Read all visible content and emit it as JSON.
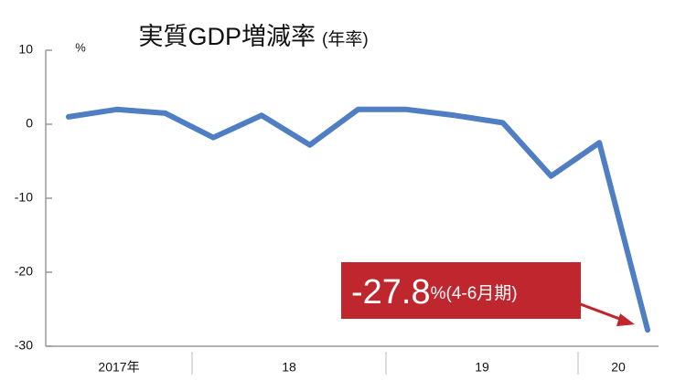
{
  "chart_data": {
    "type": "line",
    "title": "実質GDP増減率",
    "subtitle": "(年率)",
    "y_unit": "%",
    "categories": [
      null,
      "2017年",
      null,
      null,
      "18",
      null,
      null,
      null,
      "19",
      null,
      null,
      "20",
      null
    ],
    "values": [
      1.0,
      2.0,
      1.5,
      -1.8,
      1.2,
      -2.8,
      2.0,
      2.0,
      1.2,
      0.2,
      -7.0,
      -2.5,
      -27.8
    ],
    "color": "#4f7ec2",
    "ylim": [
      -30,
      10
    ],
    "yticks": [
      -30,
      -20,
      -10,
      0,
      10
    ],
    "annotation": "%(4-6月期)",
    "annotation_color": "#c0262d"
  }
}
